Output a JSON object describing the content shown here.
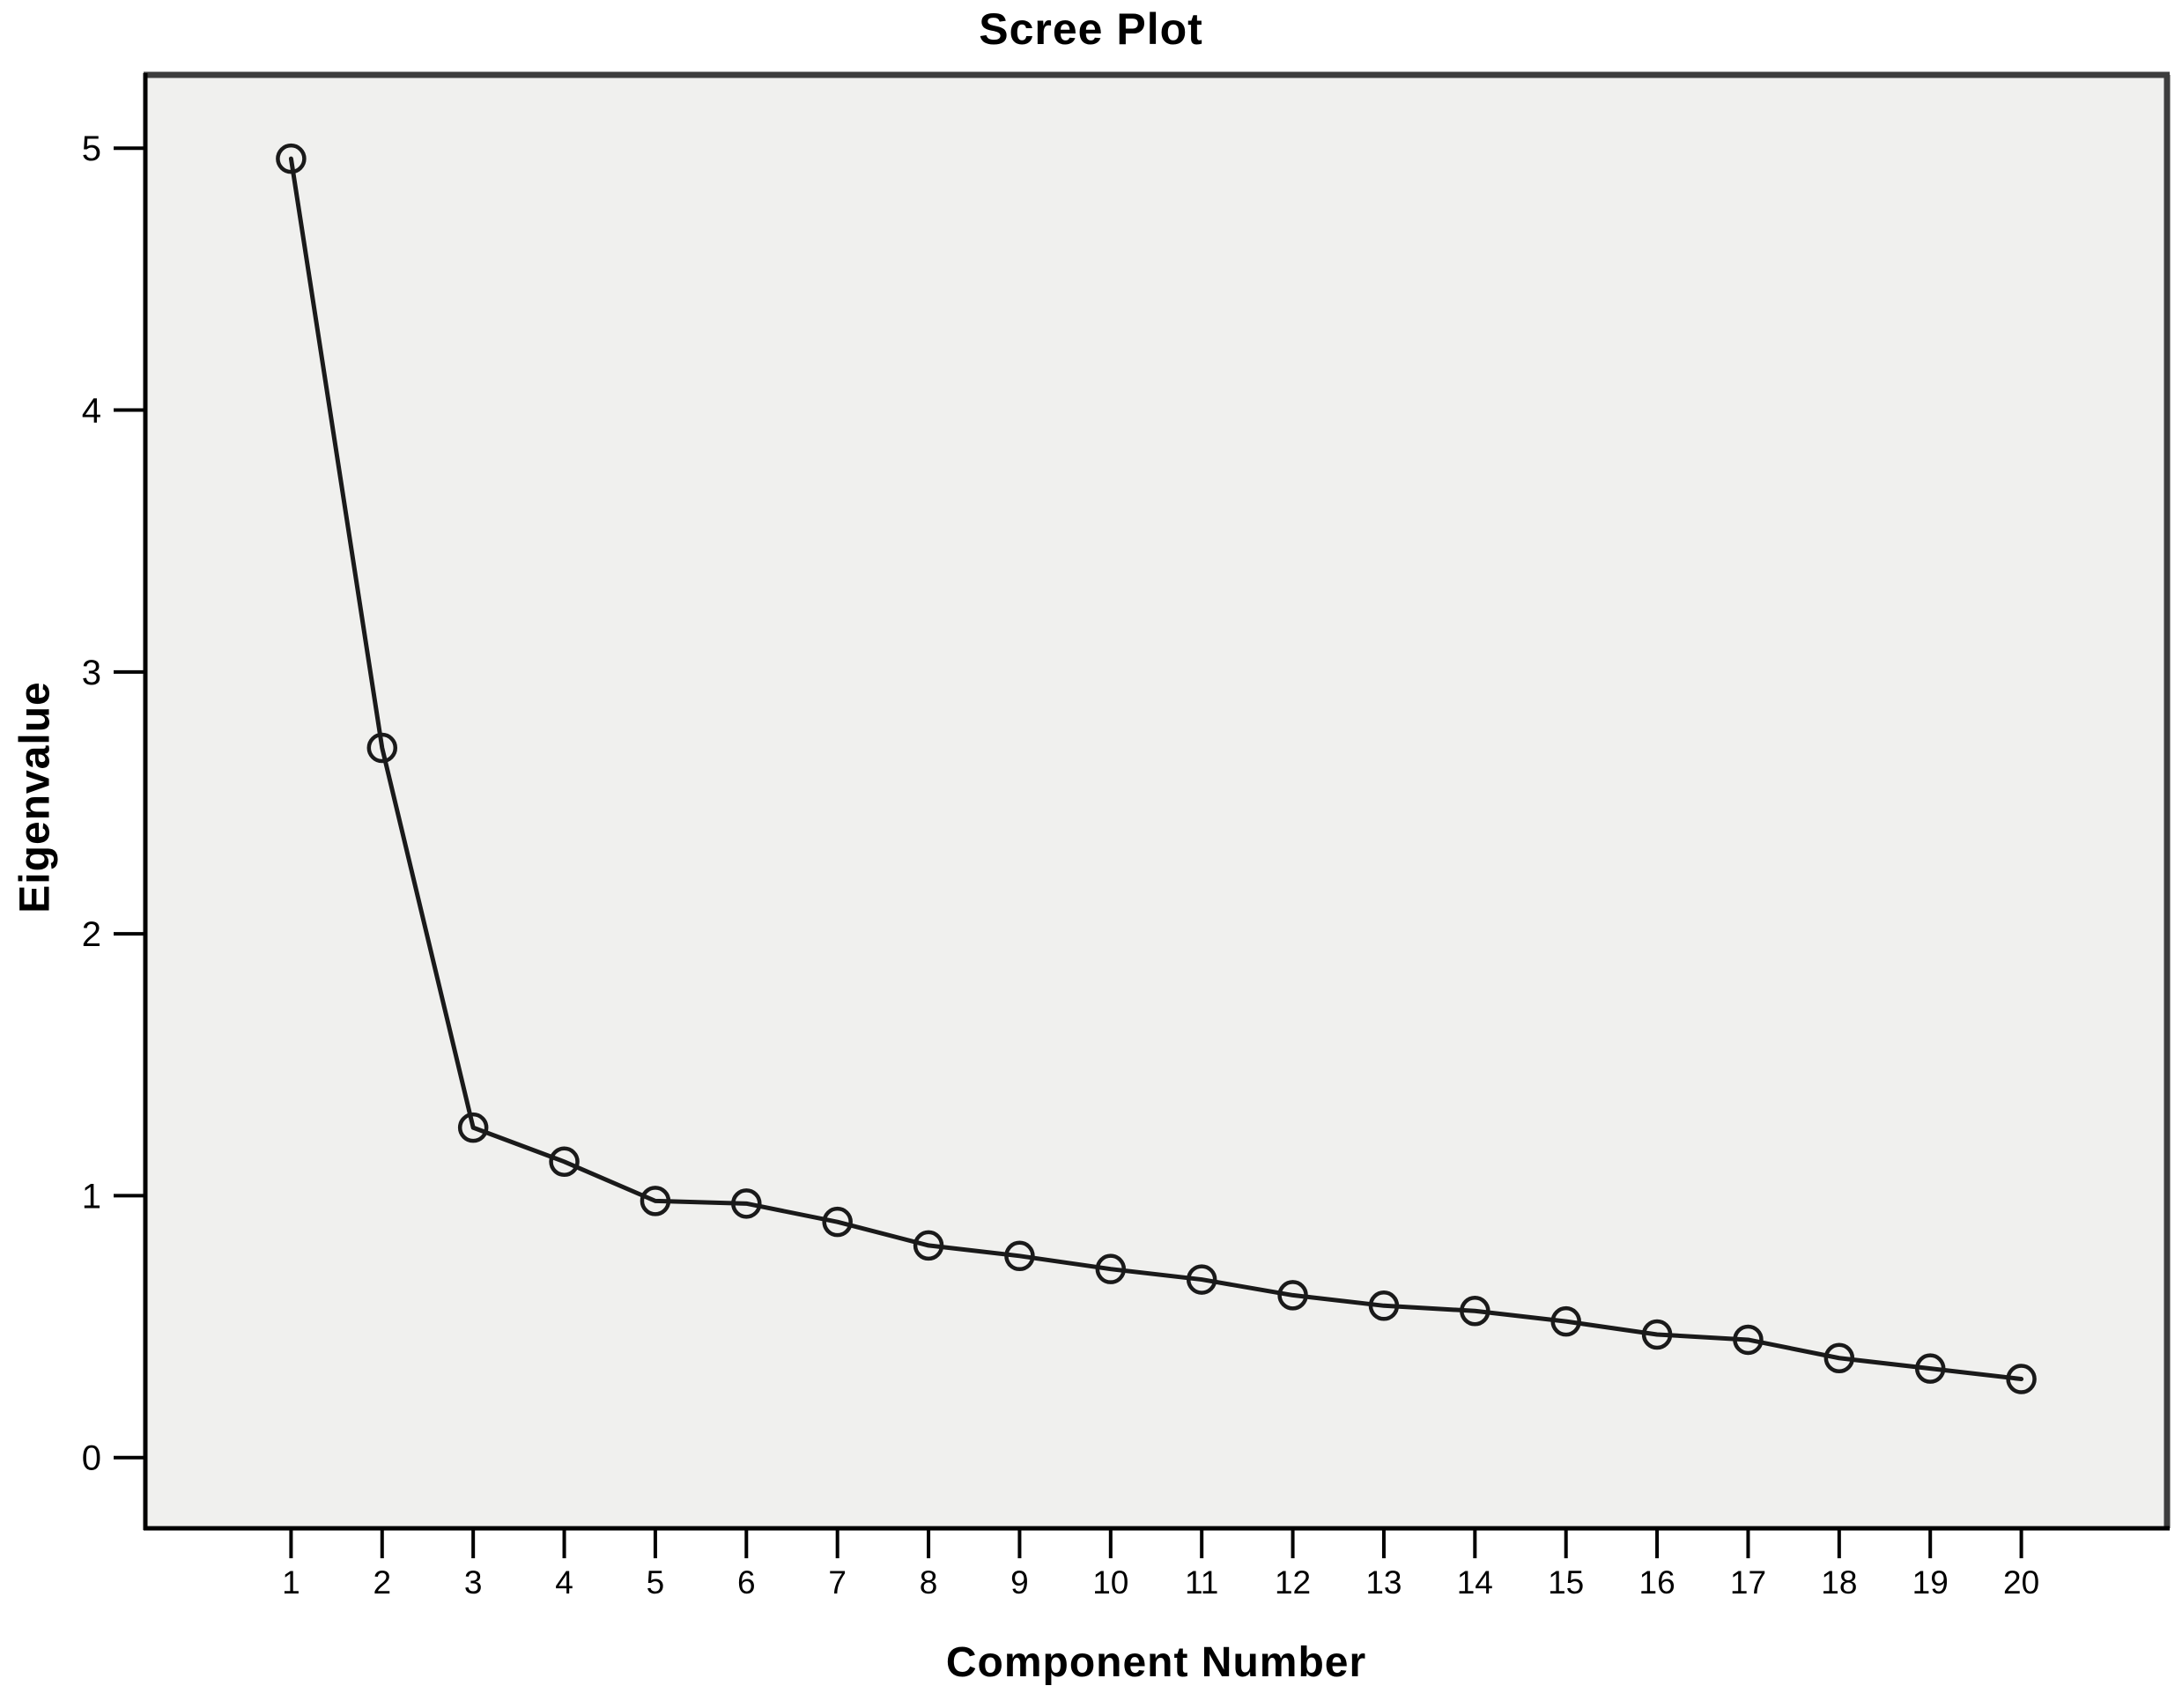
{
  "chart_data": {
    "type": "line",
    "title": "Scree Plot",
    "xlabel": "Component Number",
    "ylabel": "Eigenvalue",
    "x": [
      1,
      2,
      3,
      4,
      5,
      6,
      7,
      8,
      9,
      10,
      11,
      12,
      13,
      14,
      15,
      16,
      17,
      18,
      19,
      20
    ],
    "values": [
      4.96,
      2.71,
      1.26,
      1.13,
      0.98,
      0.97,
      0.9,
      0.81,
      0.77,
      0.72,
      0.68,
      0.62,
      0.58,
      0.56,
      0.52,
      0.47,
      0.45,
      0.38,
      0.34,
      0.3
    ],
    "xticks": [
      1,
      2,
      3,
      4,
      5,
      6,
      7,
      8,
      9,
      10,
      11,
      12,
      13,
      14,
      15,
      16,
      17,
      18,
      19,
      20
    ],
    "yticks": [
      0,
      1,
      2,
      3,
      4,
      5
    ],
    "xlim": [
      -0.6,
      21.6
    ],
    "ylim": [
      -0.27,
      5.28
    ],
    "grid": false,
    "legend": null,
    "marker": "open-circle",
    "style": {
      "line_color": "#1a1a1a",
      "marker_color": "#1a1a1a",
      "plot_bg": "#f0f0ee",
      "frame_color": "#3d3d3d",
      "axis_color": "#000000",
      "text_color": "#000000",
      "page_bg": "#ffffff"
    }
  }
}
